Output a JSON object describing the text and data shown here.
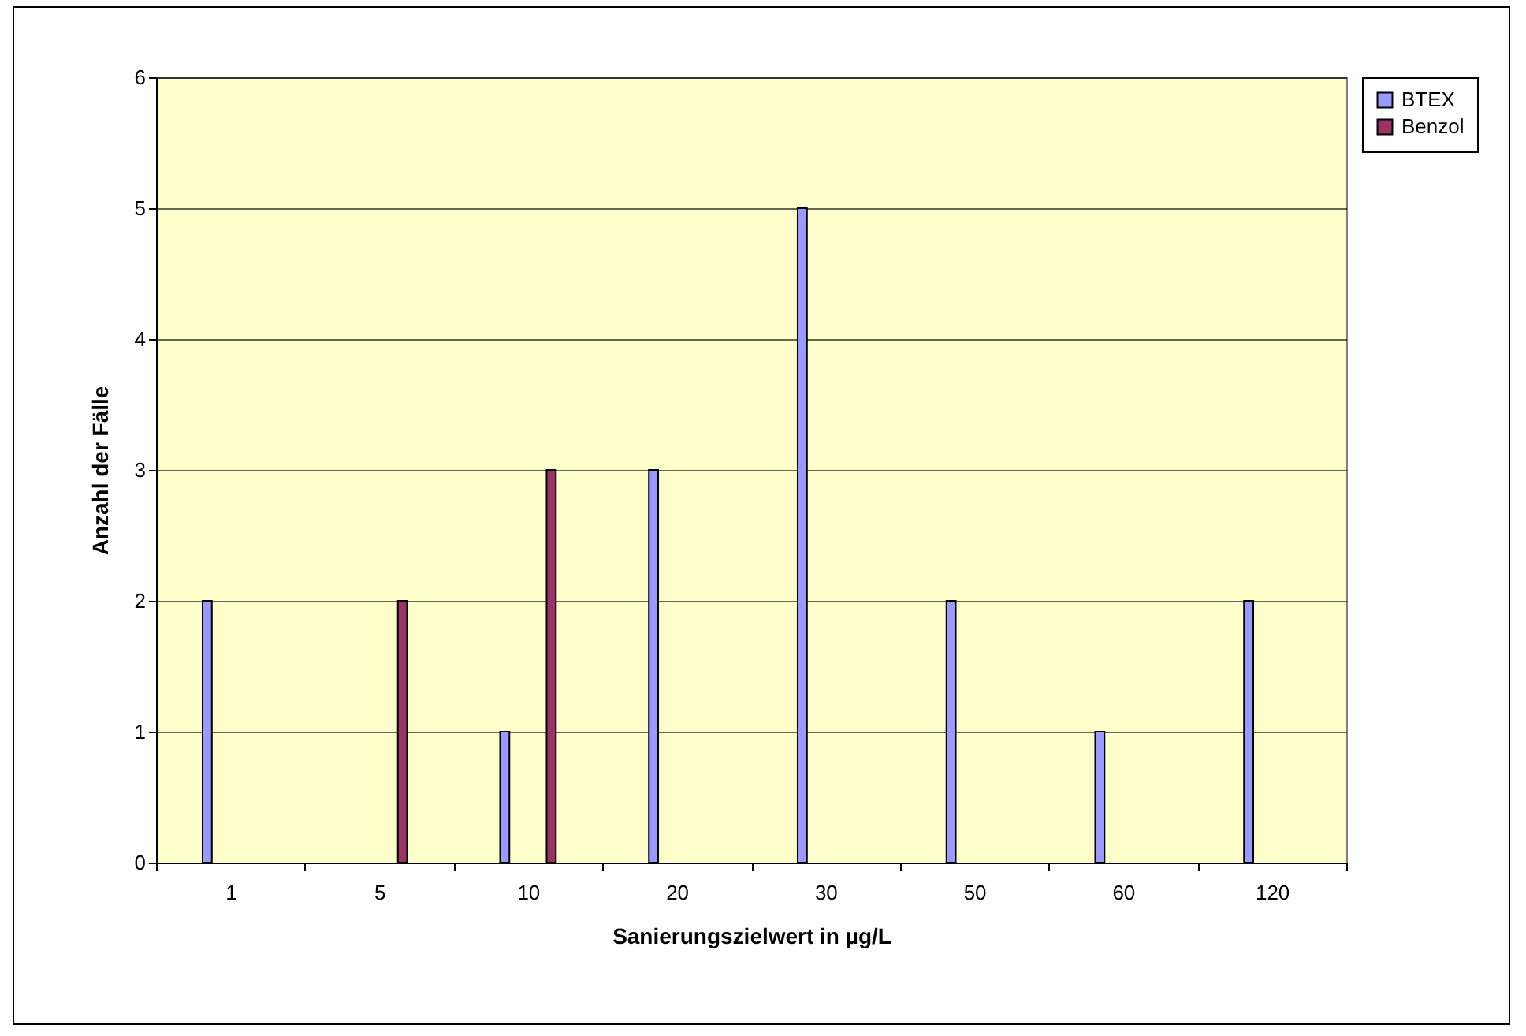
{
  "chart_data": {
    "type": "bar",
    "xlabel": "Sanierungszielwert  in µg/L",
    "ylabel": "Anzahl der Fälle",
    "categories": [
      "1",
      "5",
      "10",
      "20",
      "30",
      "50",
      "60",
      "120"
    ],
    "series": [
      {
        "name": "BTEX",
        "color": "#9999ff",
        "values": [
          2,
          null,
          1,
          3,
          5,
          2,
          1,
          2
        ]
      },
      {
        "name": "Benzol",
        "color": "#993366",
        "values": [
          null,
          2,
          3,
          null,
          null,
          null,
          null,
          null
        ]
      }
    ],
    "ylim": [
      0,
      6
    ],
    "yticks": [
      0,
      1,
      2,
      3,
      4,
      5,
      6
    ],
    "grid": "y",
    "legend": "right"
  }
}
